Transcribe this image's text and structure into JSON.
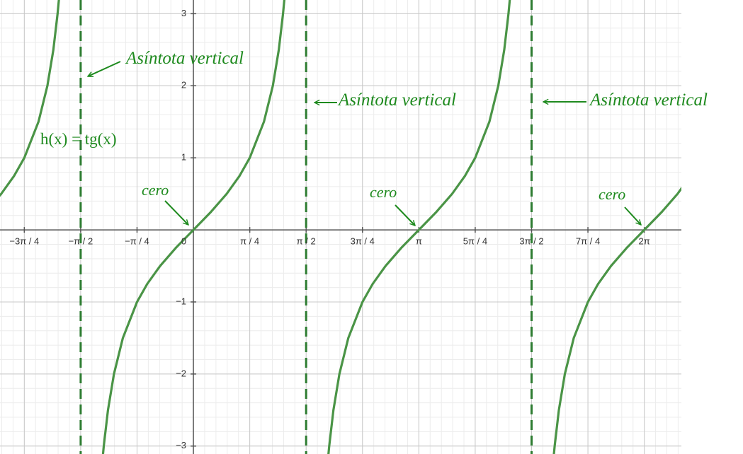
{
  "chart_data": {
    "type": "line",
    "function_label": "h(x) = tg(x)",
    "color": "#4a9446",
    "x": [
      -2.8966,
      -2.678,
      -2.4981,
      -2.3562,
      -2.1588,
      -2.0345,
      -1.9513,
      -1.8926,
      -1.8737,
      null,
      -1.2679,
      -1.249,
      -1.1903,
      -1.1071,
      -0.9828,
      -0.7854,
      -0.6435,
      -0.4636,
      -0.245,
      0,
      0.245,
      0.4636,
      0.6435,
      0.7854,
      0.9828,
      1.1071,
      1.1903,
      1.249,
      1.2679,
      null,
      1.8737,
      1.8926,
      1.9513,
      2.0345,
      2.1588,
      2.3562,
      2.4981,
      2.678,
      2.8966,
      3.1416,
      3.3866,
      3.6052,
      3.7851,
      3.927,
      4.1244,
      4.2487,
      4.3319,
      4.3906,
      4.4095,
      null,
      5.0153,
      5.0342,
      5.0929,
      5.1761,
      5.3004,
      5.4978,
      5.6397,
      5.8196,
      6.0382,
      6.2832,
      6.5282,
      6.7468,
      6.9267
    ],
    "values": [
      0.25,
      0.5,
      0.75,
      1,
      1.5,
      2,
      2.5,
      3,
      3.2,
      null,
      -3.2,
      -3,
      -2.5,
      -2,
      -1.5,
      -1,
      -0.75,
      -0.5,
      -0.25,
      0,
      0.25,
      0.5,
      0.75,
      1,
      1.5,
      2,
      2.5,
      3,
      3.2,
      null,
      -3.2,
      -3,
      -2.5,
      -2,
      -1.5,
      -1,
      -0.75,
      -0.5,
      -0.25,
      0,
      0.25,
      0.5,
      0.75,
      1,
      1.5,
      2,
      2.5,
      3,
      3.2,
      null,
      -3.2,
      -3,
      -2.5,
      -2,
      -1.5,
      -1,
      -0.75,
      -0.5,
      -0.25,
      0,
      0.25,
      0.5,
      0.75
    ],
    "asymptotes": [
      -1.5708,
      1.5708,
      4.7124
    ],
    "asymptote_color": "#2e7d32",
    "annotations": [
      "Asíntota vertical",
      "Asíntota vertical",
      "Asíntota vertical",
      "cero",
      "cero",
      "cero"
    ],
    "annotation_color": "#1e8a1e",
    "xlim": [
      -2.695,
      6.8
    ],
    "ylim": [
      -3.11,
      3.19
    ],
    "xticks": [
      {
        "value": -2.3562,
        "label": "−3π / 4"
      },
      {
        "value": -1.5708,
        "label": "−π / 2"
      },
      {
        "value": -0.7854,
        "label": "−π / 4"
      },
      0,
      {
        "value": 0.7854,
        "label": "π / 4"
      },
      {
        "value": 1.5708,
        "label": "π / 2"
      },
      {
        "value": 2.3562,
        "label": "3π / 4"
      },
      {
        "value": 3.1416,
        "label": "π"
      },
      {
        "value": 3.927,
        "label": "5π / 4"
      },
      {
        "value": 4.7124,
        "label": "3π / 2"
      },
      {
        "value": 5.4978,
        "label": "7π / 4"
      },
      {
        "value": 6.2832,
        "label": "2π"
      }
    ],
    "yticks": [
      {
        "value": -3,
        "label": "−3"
      },
      {
        "value": -2,
        "label": "−2"
      },
      {
        "value": -1,
        "label": "−1"
      },
      1,
      2,
      3
    ],
    "grid": true,
    "minor_grid_divisions": 5
  }
}
